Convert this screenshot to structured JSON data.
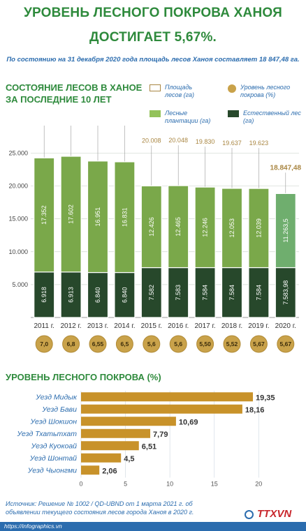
{
  "header": {
    "title_line1": "УРОВЕНЬ ЛЕСНОГО ПОКРОВА ХАНОЯ",
    "title_line2": "ДОСТИГАЕТ 5,67%.",
    "subtitle": "По состоянию на 31 декабря 2020 года площадь лесов Ханоя составляет 18 847,48 га."
  },
  "section1": {
    "title_line1": "СОСТОЯНИЕ ЛЕСОВ В ХАНОЕ",
    "title_line2": "ЗА ПОСЛЕДНИЕ 10 ЛЕТ"
  },
  "legend": {
    "area_line1": "Площадь",
    "area_line2": "лесов (га)",
    "rate_line1": "Уровень лесного",
    "rate_line2": "покрова (%)",
    "plant_line1": "Лесные",
    "plant_line2": "плантации (га)",
    "natural_line1": "Естественный лес",
    "natural_line2": "(га)"
  },
  "section2": {
    "title": "УРОВЕНЬ ЛЕСНОГО ПОКРОВА (%)"
  },
  "source": {
    "line1": "Источник: Решение № 1002 / QD-UBND от 1 марта 2021 г. об",
    "line2": "объявлении текущего состояния лесов города Ханоя в 2020 г."
  },
  "footer": {
    "site": "https://infographics.vn",
    "logo": "TTXVN",
    "logo_sub": "Vietnam News Agency"
  },
  "colors": {
    "natural": "#27482b",
    "plantation": "#7aa84a",
    "plantation_2020": "#6fae6e",
    "coin": "#c9a24a",
    "hbar": "#c8922a",
    "green_title": "#2e8a3c",
    "blue_text": "#2b6cae"
  },
  "chart_data": [
    {
      "type": "bar",
      "stacked": true,
      "categories": [
        "2011 г.",
        "2012 г.",
        "2013 г.",
        "2014 г.",
        "2015 г.",
        "2016 г.",
        "2017 г.",
        "2018 г.",
        "2019 г.",
        "2020 г."
      ],
      "series": [
        {
          "name": "Естественный лес (га)",
          "values": [
            6918,
            6913,
            6840,
            6840,
            7582,
            7583,
            7584,
            7584,
            7584,
            7583.98
          ],
          "labels": [
            "6.918",
            "6.913",
            "6.840",
            "6.840",
            "7.582",
            "7.583",
            "7.584",
            "7.584",
            "7.584",
            "7.583,98"
          ]
        },
        {
          "name": "Лесные плантации (га)",
          "values": [
            17352,
            17602,
            16951,
            16831,
            12426,
            12465,
            12246,
            12053,
            12039,
            11263.5
          ],
          "labels": [
            "17.352",
            "17.602",
            "16.951",
            "16.831",
            "12.426",
            "12.465",
            "12.246",
            "12.053",
            "12.039",
            "11.263,5"
          ]
        }
      ],
      "totals": {
        "name": "Площадь лесов (га)",
        "values": [
          24269,
          24515,
          23791,
          23670,
          20008,
          20048,
          19830,
          19637,
          19623,
          18847.48
        ],
        "labels": [
          "24.269",
          "24.515",
          "23.791",
          "23.670",
          "20.008",
          "20.048",
          "19.830",
          "19.637",
          "19.623",
          "18.847,48"
        ]
      },
      "coverage": {
        "name": "Уровень лесного покрова (%)",
        "values": [
          7.0,
          6.8,
          6.55,
          6.5,
          5.6,
          5.6,
          5.5,
          5.52,
          5.67,
          5.67
        ],
        "labels": [
          "7,0",
          "6,8",
          "6,55",
          "6,5",
          "5,6",
          "5,6",
          "5,50",
          "5,52",
          "5,67",
          "5,67"
        ]
      },
      "yticks": [
        "5.000",
        "10.000",
        "15.000",
        "20.000",
        "25.000"
      ],
      "ytick_values": [
        5000,
        10000,
        15000,
        20000,
        25000
      ],
      "ylim": [
        0,
        26000
      ],
      "grid": true
    },
    {
      "type": "bar",
      "orientation": "horizontal",
      "categories": [
        "Уезд Мидык",
        "Уезд Бави",
        "Уезд Шокшон",
        "Уезд Тхатьтхат",
        "Уезд Куокоай",
        "Уезд Шонтай",
        "Уезд Чыонгми"
      ],
      "values": [
        19.35,
        18.16,
        10.69,
        7.79,
        6.51,
        4.5,
        2.06
      ],
      "labels": [
        "19,35",
        "18,16",
        "10,69",
        "7,79",
        "6,51",
        "4,5",
        "2,06"
      ],
      "xticks": [
        "0",
        "5",
        "10",
        "15",
        "20"
      ],
      "xtick_values": [
        0,
        5,
        10,
        15,
        20
      ],
      "xlim": [
        0,
        21
      ],
      "grid": true
    }
  ]
}
